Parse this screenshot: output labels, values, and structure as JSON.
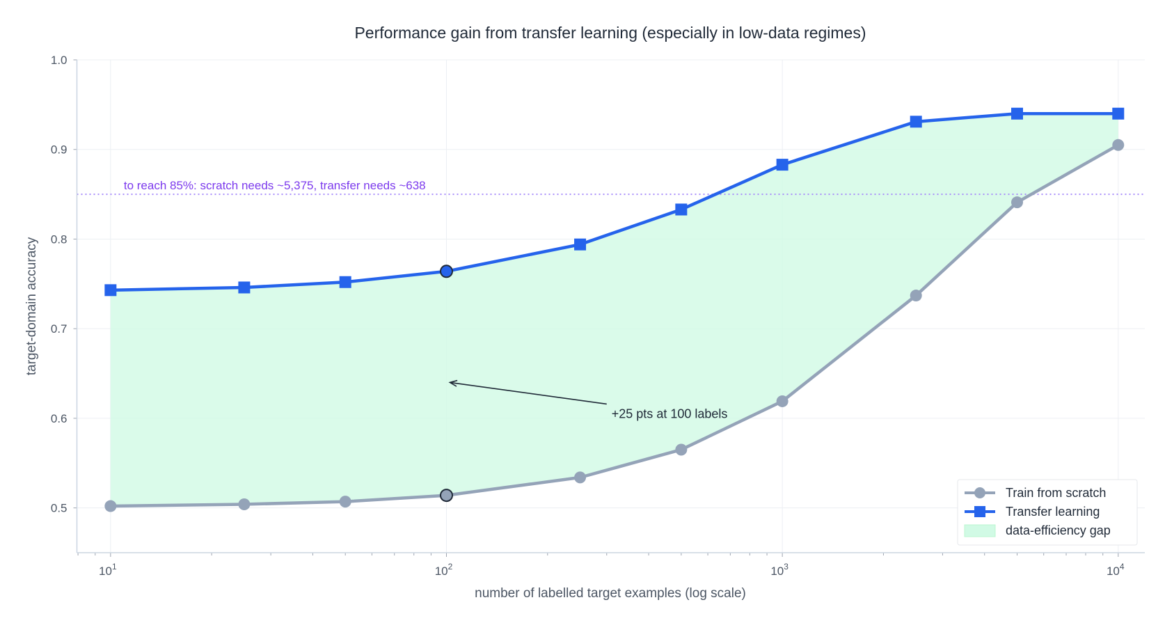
{
  "chart_data": {
    "type": "line",
    "title": "Performance gain from transfer learning (especially in low-data regimes)",
    "xlabel": "number of labelled target examples (log scale)",
    "ylabel": "target-domain accuracy",
    "x_scale": "log",
    "xlim": [
      7.94,
      12000
    ],
    "ylim": [
      0.45,
      1.0
    ],
    "grid": true,
    "x": [
      10,
      25,
      50,
      100,
      250,
      500,
      1000,
      2500,
      5000,
      10000
    ],
    "x_ticks": [
      {
        "base": "10",
        "exp": "1",
        "value": 10
      },
      {
        "base": "10",
        "exp": "2",
        "value": 100
      },
      {
        "base": "10",
        "exp": "3",
        "value": 1000
      },
      {
        "base": "10",
        "exp": "4",
        "value": 10000
      }
    ],
    "y_ticks": [
      "0.5",
      "0.6",
      "0.7",
      "0.8",
      "0.9",
      "1.0"
    ],
    "series": [
      {
        "name": "Train from scratch",
        "color": "#94a3b8",
        "marker": "circle",
        "values": [
          0.502,
          0.504,
          0.507,
          0.514,
          0.534,
          0.565,
          0.619,
          0.737,
          0.841,
          0.905
        ]
      },
      {
        "name": "Transfer learning",
        "color": "#2563eb",
        "marker": "square",
        "values": [
          0.743,
          0.746,
          0.752,
          0.764,
          0.794,
          0.833,
          0.883,
          0.931,
          0.94,
          0.94
        ]
      }
    ],
    "fill": {
      "name": "data-efficiency gap",
      "color": "#d1fae5"
    },
    "highlight_x": 100,
    "reference_line": {
      "y": 0.85,
      "color": "#a78bfa",
      "label": "to reach 85%: scratch needs ~5,375, transfer needs ~638",
      "label_color": "#7c3aed"
    },
    "annotation": {
      "text": "+25 pts at 100 labels",
      "arrow_to": [
        100,
        0.64
      ]
    },
    "legend_placement": "bottom-right"
  }
}
